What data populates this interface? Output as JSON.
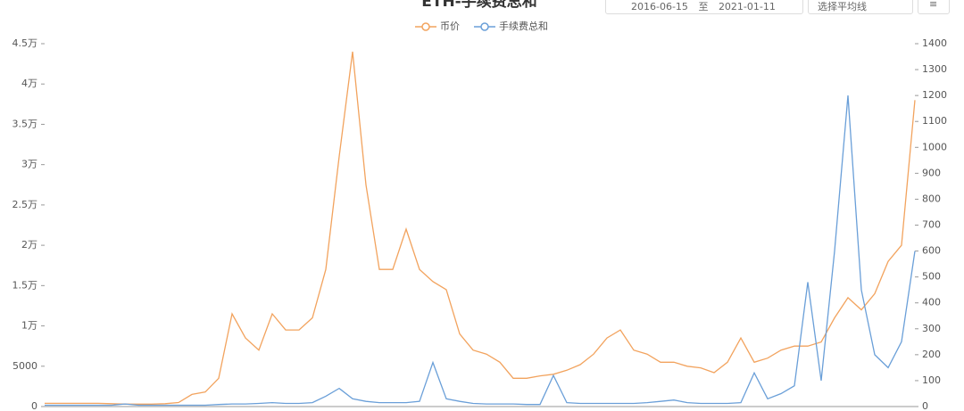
{
  "header": {
    "title": "ETH-手续费总和",
    "start_date": "2016-06-15",
    "separator": "至",
    "end_date": "2021-01-11",
    "average_select": "选择平均线",
    "menu": "≡"
  },
  "chart_data": {
    "type": "line",
    "series": [
      {
        "name": "币价",
        "color": "#f2a35e",
        "axis": "y",
        "values": [
          400,
          400,
          400,
          400,
          400,
          350,
          300,
          300,
          300,
          350,
          500,
          1500,
          1800,
          3500,
          11500,
          8500,
          7000,
          11500,
          9500,
          9500,
          11000,
          17000,
          31000,
          44000,
          27500,
          17000,
          17000,
          22000,
          17000,
          15500,
          14500,
          9000,
          7000,
          6500,
          5500,
          3500,
          3500,
          3800,
          4000,
          4500,
          5200,
          6500,
          8500,
          9500,
          7000,
          6500,
          5500,
          5500,
          5000,
          4800,
          4200,
          5500,
          8500,
          5500,
          6000,
          7000,
          7500,
          7500,
          8000,
          11000,
          13500,
          12000,
          14000,
          18000,
          20000,
          38000
        ]
      },
      {
        "name": "手续费总和",
        "color": "#6a9fd8",
        "axis": "y2",
        "values": [
          5,
          5,
          5,
          5,
          5,
          5,
          10,
          5,
          5,
          5,
          5,
          5,
          5,
          8,
          10,
          10,
          12,
          15,
          12,
          12,
          15,
          40,
          70,
          30,
          20,
          15,
          15,
          15,
          20,
          170,
          30,
          20,
          12,
          10,
          10,
          10,
          8,
          8,
          120,
          15,
          12,
          12,
          12,
          12,
          12,
          15,
          20,
          25,
          15,
          12,
          12,
          12,
          15,
          130,
          30,
          50,
          80,
          480,
          100,
          600,
          1200,
          450,
          200,
          150,
          250,
          600
        ]
      }
    ],
    "ylim": [
      0,
      45000
    ],
    "yticks": [
      0,
      5000,
      {
        "value": 10000,
        "label": "1万"
      },
      {
        "value": 15000,
        "label": "1.5万"
      },
      {
        "value": 20000,
        "label": "2万"
      },
      {
        "value": 25000,
        "label": "2.5万"
      },
      {
        "value": 30000,
        "label": "3万"
      },
      {
        "value": 35000,
        "label": "3.5万"
      },
      {
        "value": 40000,
        "label": "4万"
      },
      {
        "value": 45000,
        "label": "4.5万"
      }
    ],
    "y2lim": [
      0,
      1400
    ],
    "y2ticks": [
      0,
      100,
      200,
      300,
      400,
      500,
      600,
      700,
      800,
      900,
      1000,
      1100,
      1200,
      1300,
      1400
    ],
    "legend": "top"
  }
}
